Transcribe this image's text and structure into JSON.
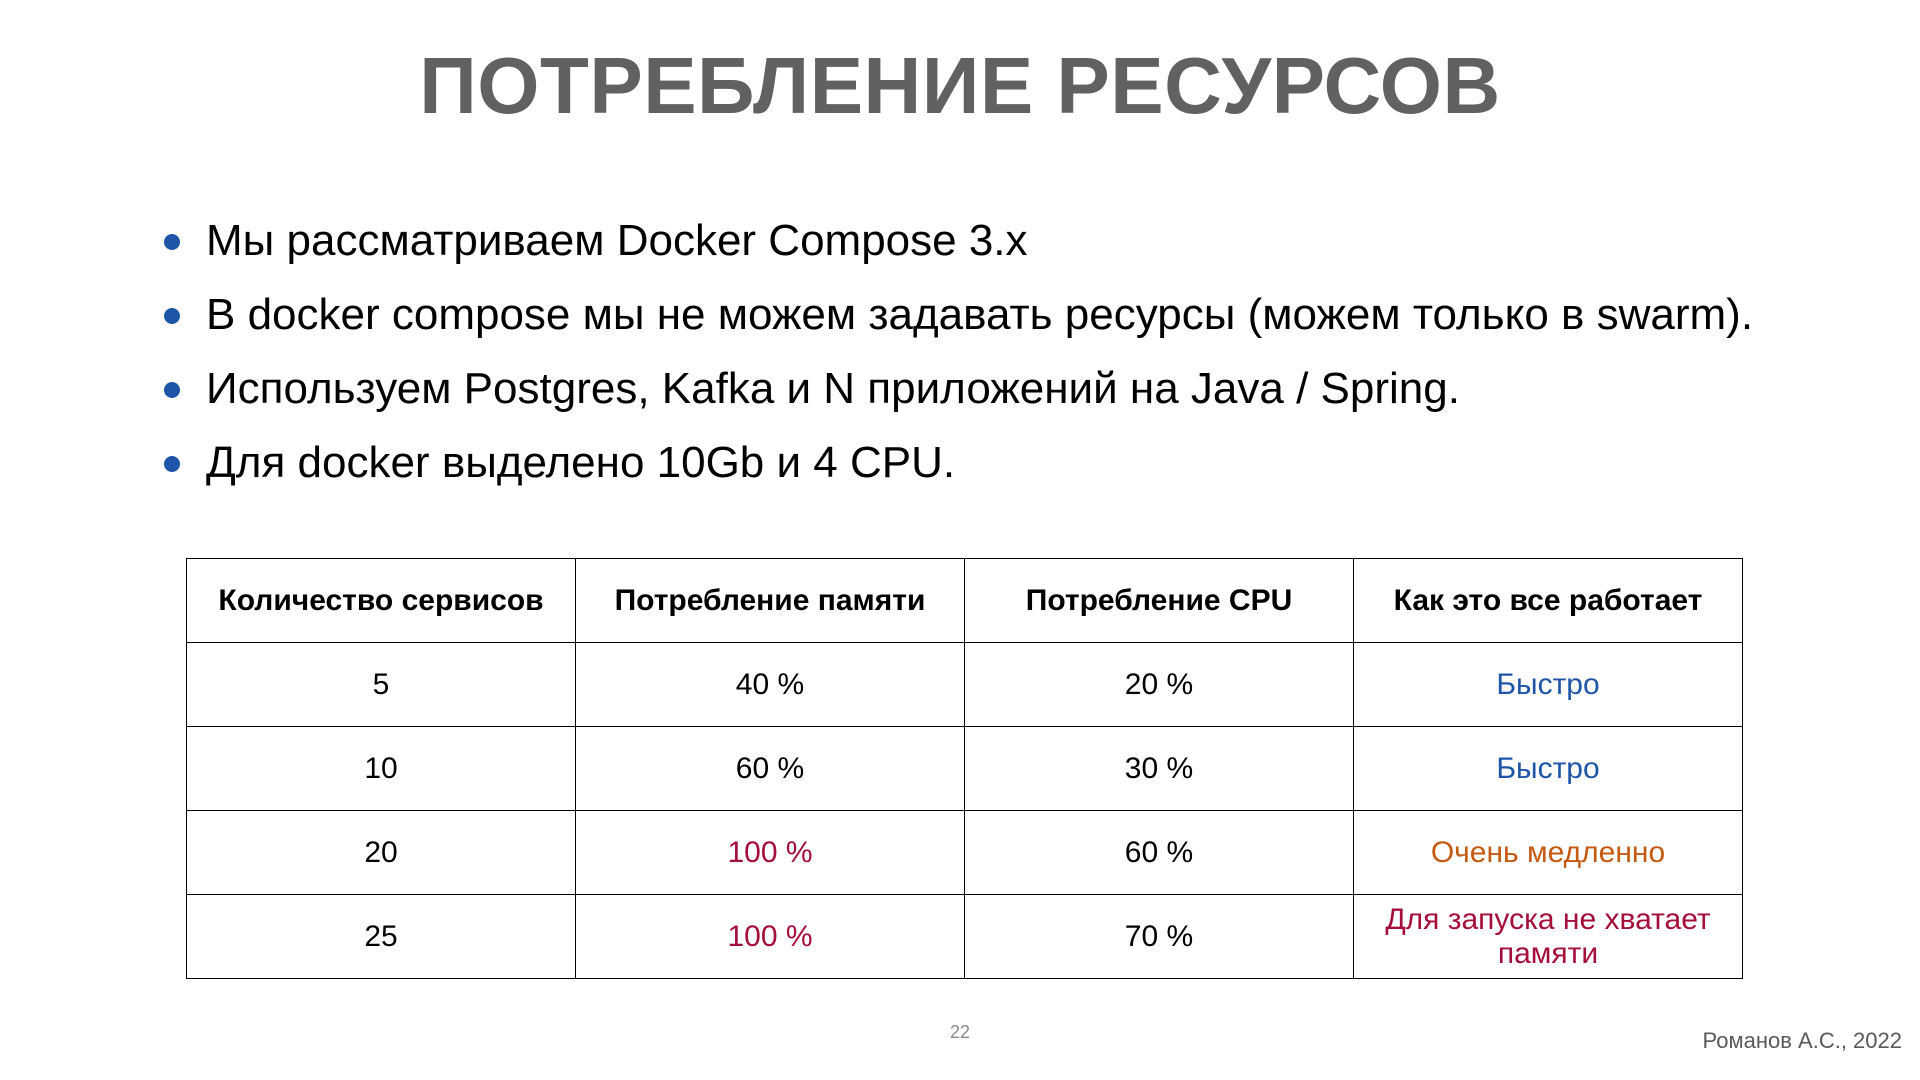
{
  "slide": {
    "title": "ПОТРЕБЛЕНИЕ РЕСУРСОВ",
    "page_number": "22",
    "author": "Романов А.С., 2022"
  },
  "bullets": [
    {
      "text": "Мы рассматриваем Docker Compose 3.x"
    },
    {
      "text": "В docker compose мы не можем задавать ресурсы (можем только в swarm)."
    },
    {
      "text": "Используем Postgres, Kafka и N приложений на Java / Spring."
    },
    {
      "text": "Для docker выделено 10Gb и 4 CPU."
    }
  ],
  "colors": {
    "title": "#616161",
    "bullet": "#1f55a8",
    "fast": "#1f55a8",
    "slow": "#c65911",
    "critical": "#a50d3a",
    "normal": "#000000"
  },
  "table": {
    "headers": [
      "Количество сервисов",
      "Потребление памяти",
      "Потребление CPU",
      "Как это все работает"
    ],
    "rows": [
      {
        "services": "5",
        "memory": "40 %",
        "cpu": "20 %",
        "performance": "Быстро",
        "memory_color": "#000000",
        "performance_color": "#1f55a8"
      },
      {
        "services": "10",
        "memory": "60 %",
        "cpu": "30 %",
        "performance": "Быстро",
        "memory_color": "#000000",
        "performance_color": "#1f55a8"
      },
      {
        "services": "20",
        "memory": "100 %",
        "cpu": "60 %",
        "performance": "Очень медленно",
        "memory_color": "#a50d3a",
        "performance_color": "#c65911"
      },
      {
        "services": "25",
        "memory": "100 %",
        "cpu": "70 %",
        "performance": "Для запуска не хватает памяти",
        "memory_color": "#a50d3a",
        "performance_color": "#a50d3a"
      }
    ]
  }
}
